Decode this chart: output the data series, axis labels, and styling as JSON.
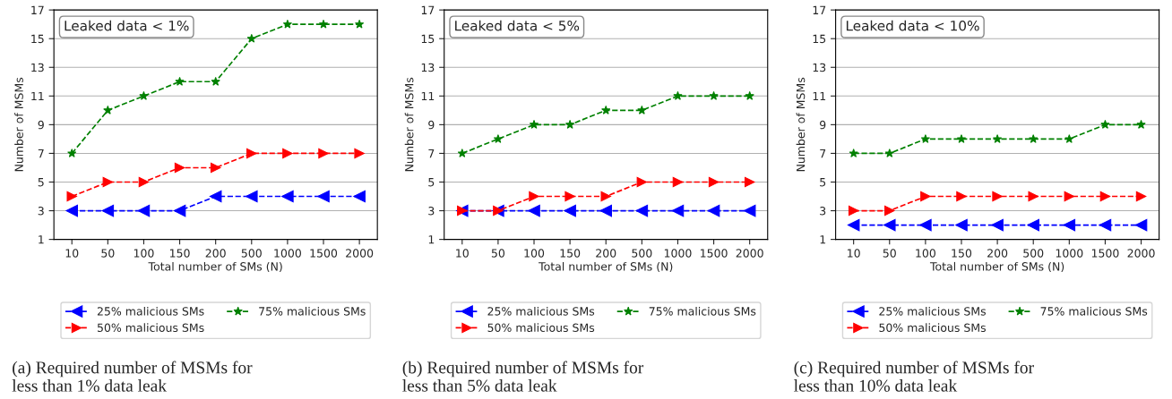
{
  "chart_data": [
    {
      "type": "line",
      "title": null,
      "xlabel": "Total number of SMs (N)",
      "ylabel": "Number of MSMs",
      "categories": [
        "10",
        "50",
        "100",
        "150",
        "200",
        "500",
        "1000",
        "1500",
        "2000"
      ],
      "ylim": [
        1,
        17
      ],
      "yticks": [
        1,
        3,
        5,
        7,
        9,
        11,
        13,
        15,
        17
      ],
      "grid": "y",
      "legend": "bottom",
      "line_style": "dashed",
      "series": [
        {
          "name": "25% malicious SMs",
          "color": "#0000ff",
          "marker": "triangle-left",
          "values": [
            3,
            3,
            3,
            3,
            4,
            4,
            4,
            4,
            4
          ]
        },
        {
          "name": "50% malicious SMs",
          "color": "#ff0000",
          "marker": "triangle-right",
          "values": [
            4,
            5,
            5,
            6,
            6,
            7,
            7,
            7,
            7
          ]
        },
        {
          "name": "75% malicious SMs",
          "color": "#008000",
          "marker": "star",
          "values": [
            7,
            10,
            11,
            12,
            12,
            15,
            16,
            16,
            16
          ]
        }
      ],
      "annotations": [
        "Leaked data < 1%",
        "(a) Required number of MSMs for\nless than 1% data leak"
      ]
    },
    {
      "type": "line",
      "title": null,
      "xlabel": "Total number of SMs (N)",
      "ylabel": "Number of MSMs",
      "categories": [
        "10",
        "50",
        "100",
        "150",
        "200",
        "500",
        "1000",
        "1500",
        "2000"
      ],
      "ylim": [
        1,
        17
      ],
      "yticks": [
        1,
        3,
        5,
        7,
        9,
        11,
        13,
        15,
        17
      ],
      "grid": "y",
      "legend": "bottom",
      "line_style": "dashed",
      "series": [
        {
          "name": "25% malicious SMs",
          "color": "#0000ff",
          "marker": "triangle-left",
          "values": [
            3,
            3,
            3,
            3,
            3,
            3,
            3,
            3,
            3
          ]
        },
        {
          "name": "50% malicious SMs",
          "color": "#ff0000",
          "marker": "triangle-right",
          "values": [
            3,
            3,
            4,
            4,
            4,
            5,
            5,
            5,
            5
          ]
        },
        {
          "name": "75% malicious SMs",
          "color": "#008000",
          "marker": "star",
          "values": [
            7,
            8,
            9,
            9,
            10,
            10,
            11,
            11,
            11
          ]
        }
      ],
      "annotations": [
        "Leaked data < 5%",
        "(b) Required number of MSMs for\nless than 5% data leak"
      ]
    },
    {
      "type": "line",
      "title": null,
      "xlabel": "Total number of SMs (N)",
      "ylabel": "Number of MSMs",
      "categories": [
        "10",
        "50",
        "100",
        "150",
        "200",
        "500",
        "1000",
        "1500",
        "2000"
      ],
      "ylim": [
        1,
        17
      ],
      "yticks": [
        1,
        3,
        5,
        7,
        9,
        11,
        13,
        15,
        17
      ],
      "grid": "y",
      "legend": "bottom",
      "line_style": "dashed",
      "series": [
        {
          "name": "25% malicious SMs",
          "color": "#0000ff",
          "marker": "triangle-left",
          "values": [
            2,
            2,
            2,
            2,
            2,
            2,
            2,
            2,
            2
          ]
        },
        {
          "name": "50% malicious SMs",
          "color": "#ff0000",
          "marker": "triangle-right",
          "values": [
            3,
            3,
            4,
            4,
            4,
            4,
            4,
            4,
            4
          ]
        },
        {
          "name": "75% malicious SMs",
          "color": "#008000",
          "marker": "star",
          "values": [
            7,
            7,
            8,
            8,
            8,
            8,
            8,
            9,
            9
          ]
        }
      ],
      "annotations": [
        "Leaked data < 10%",
        "(c) Required number of MSMs for\nless than 10% data leak"
      ]
    }
  ]
}
